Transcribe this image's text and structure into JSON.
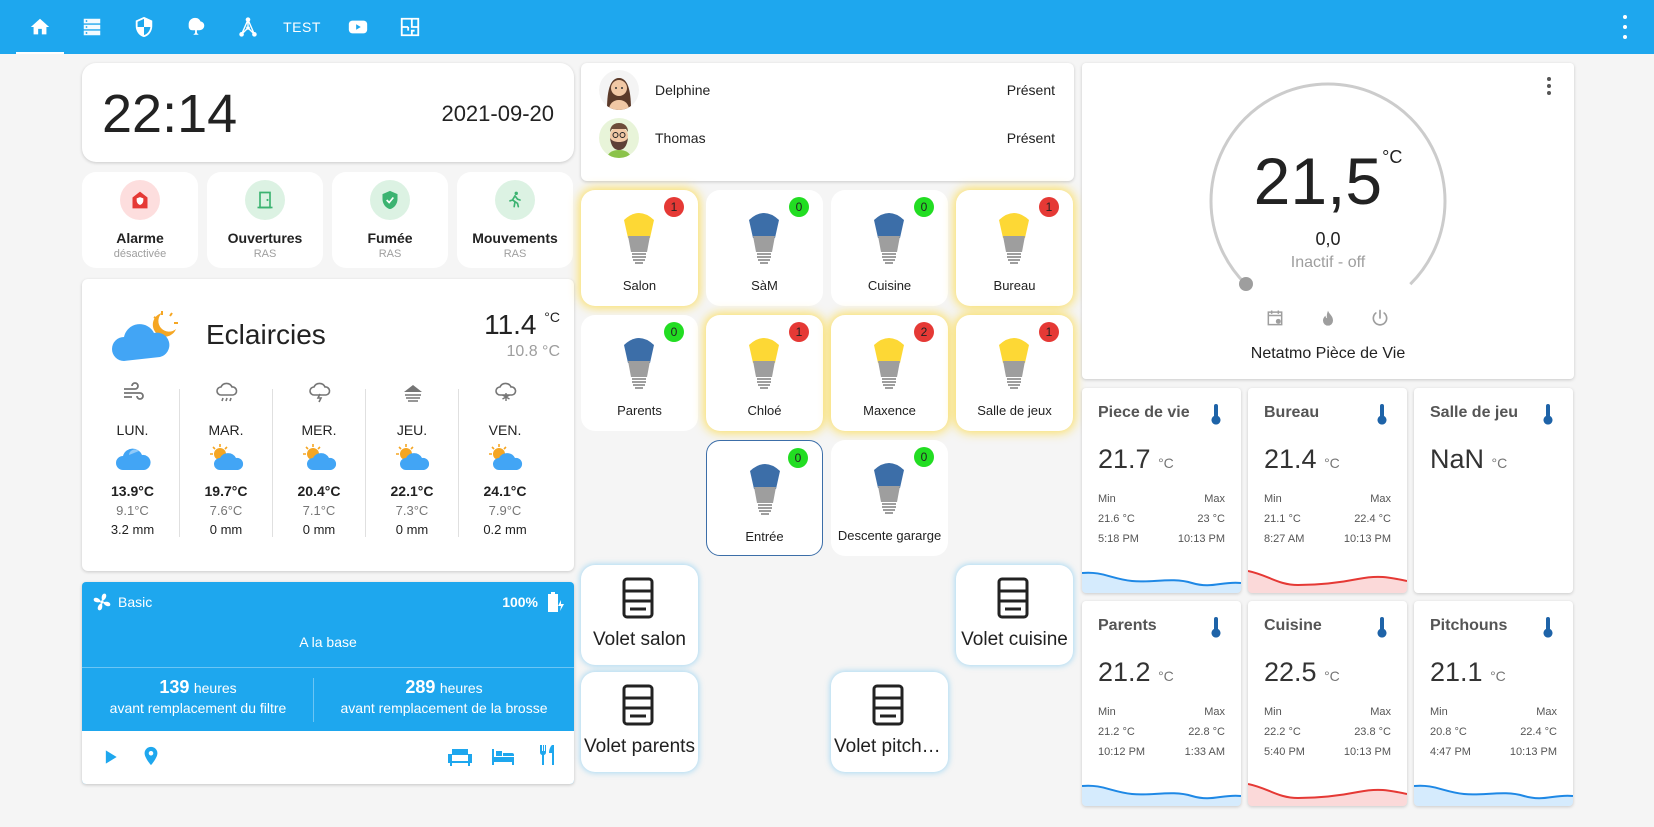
{
  "colors": {
    "accent": "#1ea7ee",
    "bulb_on": "#fdd835",
    "bulb_off": "#3c6ea8",
    "badge_red": "#e53935",
    "badge_green": "#22dd22"
  },
  "topbar": {
    "tabs": [
      {
        "icon": "home-icon",
        "label": ""
      },
      {
        "icon": "server-icon",
        "label": ""
      },
      {
        "icon": "shield-icon",
        "label": ""
      },
      {
        "icon": "map-icon",
        "label": ""
      },
      {
        "icon": "network-icon",
        "label": ""
      },
      {
        "icon": "",
        "label": "TEST"
      },
      {
        "icon": "youtube-icon",
        "label": ""
      },
      {
        "icon": "floorplan-icon",
        "label": ""
      }
    ]
  },
  "clock": {
    "time": "22:14",
    "date": "2021-09-20"
  },
  "status": [
    {
      "name": "Alarme",
      "sub": "désactivée",
      "icon": "alarm-icon"
    },
    {
      "name": "Ouvertures",
      "sub": "RAS",
      "icon": "door-icon"
    },
    {
      "name": "Fumée",
      "sub": "RAS",
      "icon": "shield-check-icon"
    },
    {
      "name": "Mouvements",
      "sub": "RAS",
      "icon": "walk-icon"
    }
  ],
  "weather": {
    "condition": "Eclaircies",
    "temp": "11.4",
    "unit": "°C",
    "low": "10.8 °C",
    "days": [
      {
        "day": "LUN.",
        "hi": "13.9°C",
        "lo": "9.1°C",
        "rain": "3.2 mm",
        "icon": "windy-icon"
      },
      {
        "day": "MAR.",
        "hi": "19.7°C",
        "lo": "7.6°C",
        "rain": "0 mm",
        "icon": "rain-icon"
      },
      {
        "day": "MER.",
        "hi": "20.4°C",
        "lo": "7.1°C",
        "rain": "0 mm",
        "icon": "storm-icon"
      },
      {
        "day": "JEU.",
        "hi": "22.1°C",
        "lo": "7.3°C",
        "rain": "0 mm",
        "icon": "fog-icon"
      },
      {
        "day": "VEN.",
        "hi": "24.1°C",
        "lo": "7.9°C",
        "rain": "0.2 mm",
        "icon": "snow-icon"
      }
    ]
  },
  "vacuum": {
    "name": "Basic",
    "battery": "100%",
    "status": "A la base",
    "filter_hours": "139",
    "filter_unit": "heures",
    "filter_label": "avant remplacement du filtre",
    "brush_hours": "289",
    "brush_unit": "heures",
    "brush_label": "avant remplacement de la brosse"
  },
  "people": [
    {
      "name": "Delphine",
      "state": "Présent"
    },
    {
      "name": "Thomas",
      "state": "Présent"
    }
  ],
  "lights": [
    {
      "name": "Salon",
      "count": "1",
      "on": true
    },
    {
      "name": "SàM",
      "count": "0",
      "on": false
    },
    {
      "name": "Cuisine",
      "count": "0",
      "on": false
    },
    {
      "name": "Bureau",
      "count": "1",
      "on": true
    },
    {
      "name": "Parents",
      "count": "0",
      "on": false
    },
    {
      "name": "Chloé",
      "count": "1",
      "on": true
    },
    {
      "name": "Maxence",
      "count": "2",
      "on": true
    },
    {
      "name": "Salle de jeux",
      "count": "1",
      "on": true
    },
    {
      "name": "Entrée",
      "count": "0",
      "on": false
    },
    {
      "name": "Descente gararge",
      "count": "0",
      "on": false
    }
  ],
  "shutters": [
    {
      "name": "Volet salon"
    },
    {
      "name": "Volet cuisine"
    },
    {
      "name": "Volet parents"
    },
    {
      "name": "Volet pitchouns"
    }
  ],
  "thermostat": {
    "temp": "21,5",
    "unit": "°C",
    "target": "0,0",
    "state": "Inactif - off",
    "name": "Netatmo Pièce de Vie"
  },
  "sensors": [
    {
      "name": "Piece de vie",
      "value": "21.7",
      "unit": "°C",
      "min_label": "Min",
      "max_label": "Max",
      "min": "21.6 °C",
      "max": "23 °C",
      "min_time": "5:18 PM",
      "max_time": "10:13 PM",
      "trend": "cool"
    },
    {
      "name": "Bureau",
      "value": "21.4",
      "unit": "°C",
      "min_label": "Min",
      "max_label": "Max",
      "min": "21.1 °C",
      "max": "22.4 °C",
      "min_time": "8:27 AM",
      "max_time": "10:13 PM",
      "trend": "warm"
    },
    {
      "name": "Salle de jeu",
      "value": "NaN",
      "unit": "°C",
      "min_label": "",
      "max_label": "",
      "min": "",
      "max": "",
      "min_time": "",
      "max_time": "",
      "trend": "none"
    },
    {
      "name": "Parents",
      "value": "21.2",
      "unit": "°C",
      "min_label": "Min",
      "max_label": "Max",
      "min": "21.2 °C",
      "max": "22.8 °C",
      "min_time": "10:12 PM",
      "max_time": "1:33 AM",
      "trend": "cool"
    },
    {
      "name": "Cuisine",
      "value": "22.5",
      "unit": "°C",
      "min_label": "Min",
      "max_label": "Max",
      "min": "22.2 °C",
      "max": "23.8 °C",
      "min_time": "5:40 PM",
      "max_time": "10:13 PM",
      "trend": "warm"
    },
    {
      "name": "Pitchouns",
      "value": "21.1",
      "unit": "°C",
      "min_label": "Min",
      "max_label": "Max",
      "min": "20.8 °C",
      "max": "22.4 °C",
      "min_time": "4:47 PM",
      "max_time": "10:13 PM",
      "trend": "cool"
    }
  ]
}
